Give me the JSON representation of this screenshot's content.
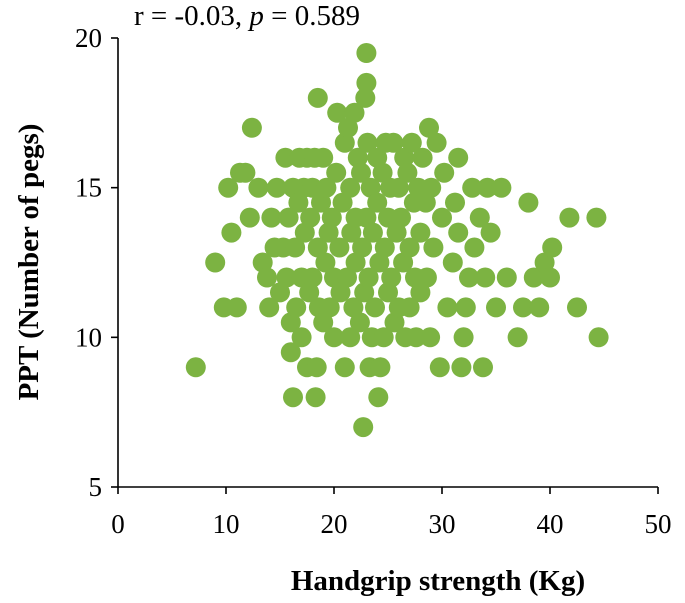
{
  "chart_data": {
    "type": "scatter",
    "annotation": {
      "r_part": "r = -0.03, ",
      "p_label": "p",
      "p_part": " = 0.589"
    },
    "xlabel": "Handgrip strength (Kg)",
    "ylabel": "PPT (Number of pegs)",
    "xlim": [
      0,
      50
    ],
    "ylim": [
      5,
      20
    ],
    "x_ticks": [
      0,
      10,
      20,
      30,
      40,
      50
    ],
    "y_ticks": [
      5,
      10,
      15,
      20
    ],
    "grid": false,
    "legend": "none",
    "marker_color": "#7cb342",
    "points": [
      [
        7.2,
        9
      ],
      [
        9.0,
        12.5
      ],
      [
        9.8,
        11
      ],
      [
        10.2,
        15
      ],
      [
        10.5,
        13.5
      ],
      [
        11.0,
        11
      ],
      [
        11.3,
        15.5
      ],
      [
        11.8,
        15.5
      ],
      [
        12.2,
        14
      ],
      [
        12.4,
        17
      ],
      [
        13.0,
        15
      ],
      [
        13.4,
        12.5
      ],
      [
        13.8,
        12
      ],
      [
        14.0,
        11
      ],
      [
        14.2,
        14
      ],
      [
        14.5,
        13
      ],
      [
        14.7,
        15
      ],
      [
        15.0,
        11.5
      ],
      [
        15.3,
        13
      ],
      [
        15.5,
        16
      ],
      [
        15.6,
        12
      ],
      [
        15.8,
        14
      ],
      [
        16.0,
        10.5
      ],
      [
        16.0,
        9.5
      ],
      [
        16.2,
        8
      ],
      [
        16.2,
        15
      ],
      [
        16.4,
        13
      ],
      [
        16.5,
        11
      ],
      [
        16.7,
        14.5
      ],
      [
        16.8,
        16
      ],
      [
        17.0,
        12
      ],
      [
        17.0,
        10
      ],
      [
        17.2,
        15
      ],
      [
        17.3,
        13.5
      ],
      [
        17.5,
        9
      ],
      [
        17.5,
        16
      ],
      [
        17.7,
        11.5
      ],
      [
        17.8,
        14
      ],
      [
        18.0,
        12
      ],
      [
        18.0,
        15
      ],
      [
        18.2,
        16
      ],
      [
        18.3,
        8
      ],
      [
        18.4,
        9
      ],
      [
        18.5,
        18
      ],
      [
        18.5,
        13
      ],
      [
        18.6,
        11
      ],
      [
        18.8,
        14.5
      ],
      [
        19.0,
        10.5
      ],
      [
        19.0,
        16
      ],
      [
        19.2,
        12.5
      ],
      [
        19.3,
        15
      ],
      [
        19.5,
        13.5
      ],
      [
        19.6,
        11
      ],
      [
        19.8,
        14
      ],
      [
        20.0,
        12
      ],
      [
        20.0,
        10
      ],
      [
        20.2,
        15.5
      ],
      [
        20.3,
        17.5
      ],
      [
        20.5,
        13
      ],
      [
        20.6,
        11.5
      ],
      [
        20.8,
        14.5
      ],
      [
        21.0,
        9
      ],
      [
        21.0,
        16.5
      ],
      [
        21.2,
        12
      ],
      [
        21.3,
        17
      ],
      [
        21.5,
        10
      ],
      [
        21.5,
        15
      ],
      [
        21.6,
        13.5
      ],
      [
        21.8,
        11
      ],
      [
        21.9,
        17.5
      ],
      [
        22.0,
        14
      ],
      [
        22.0,
        12.5
      ],
      [
        22.2,
        16
      ],
      [
        22.4,
        10.5
      ],
      [
        22.5,
        15.5
      ],
      [
        22.6,
        13
      ],
      [
        22.7,
        7
      ],
      [
        22.8,
        11.5
      ],
      [
        22.9,
        18
      ],
      [
        23.0,
        19.5
      ],
      [
        23.0,
        18.5
      ],
      [
        23.0,
        14
      ],
      [
        23.1,
        16.5
      ],
      [
        23.2,
        12
      ],
      [
        23.3,
        9
      ],
      [
        23.4,
        15
      ],
      [
        23.5,
        10
      ],
      [
        23.6,
        13.5
      ],
      [
        23.8,
        11
      ],
      [
        24.0,
        16
      ],
      [
        24.0,
        14.5
      ],
      [
        24.1,
        8
      ],
      [
        24.2,
        12.5
      ],
      [
        24.3,
        9
      ],
      [
        24.5,
        15.5
      ],
      [
        24.6,
        10
      ],
      [
        24.7,
        13
      ],
      [
        24.8,
        16.5
      ],
      [
        25.0,
        11.5
      ],
      [
        25.0,
        14
      ],
      [
        25.2,
        15
      ],
      [
        25.3,
        12
      ],
      [
        25.5,
        16.5
      ],
      [
        25.6,
        10.5
      ],
      [
        25.8,
        13.5
      ],
      [
        26.0,
        15
      ],
      [
        26.0,
        11
      ],
      [
        26.2,
        14
      ],
      [
        26.4,
        12.5
      ],
      [
        26.5,
        16
      ],
      [
        26.6,
        10
      ],
      [
        26.8,
        15.5
      ],
      [
        27.0,
        13
      ],
      [
        27.0,
        11
      ],
      [
        27.2,
        16.5
      ],
      [
        27.4,
        14.5
      ],
      [
        27.5,
        12
      ],
      [
        27.6,
        10
      ],
      [
        27.8,
        15
      ],
      [
        28.0,
        11.5
      ],
      [
        28.0,
        13.5
      ],
      [
        28.2,
        16
      ],
      [
        28.5,
        14.5
      ],
      [
        28.6,
        12
      ],
      [
        28.8,
        17
      ],
      [
        28.9,
        10
      ],
      [
        29.0,
        15
      ],
      [
        29.2,
        13
      ],
      [
        29.5,
        16.5
      ],
      [
        29.8,
        9
      ],
      [
        30.0,
        14
      ],
      [
        30.2,
        15.5
      ],
      [
        30.5,
        11
      ],
      [
        31.0,
        12.5
      ],
      [
        31.2,
        14.5
      ],
      [
        31.5,
        16
      ],
      [
        31.5,
        13.5
      ],
      [
        31.8,
        9
      ],
      [
        32.0,
        10
      ],
      [
        32.2,
        11
      ],
      [
        32.5,
        12
      ],
      [
        32.8,
        15
      ],
      [
        33.0,
        13
      ],
      [
        33.5,
        14
      ],
      [
        33.8,
        9
      ],
      [
        34.0,
        12
      ],
      [
        34.2,
        15
      ],
      [
        34.5,
        13.5
      ],
      [
        35.0,
        11
      ],
      [
        35.5,
        15
      ],
      [
        36.0,
        12
      ],
      [
        37.0,
        10
      ],
      [
        37.5,
        11
      ],
      [
        38.0,
        14.5
      ],
      [
        38.5,
        12
      ],
      [
        39.0,
        11
      ],
      [
        39.5,
        12.5
      ],
      [
        40.0,
        12
      ],
      [
        40.2,
        13
      ],
      [
        41.8,
        14
      ],
      [
        42.5,
        11
      ],
      [
        44.3,
        14
      ],
      [
        44.5,
        10
      ]
    ]
  }
}
